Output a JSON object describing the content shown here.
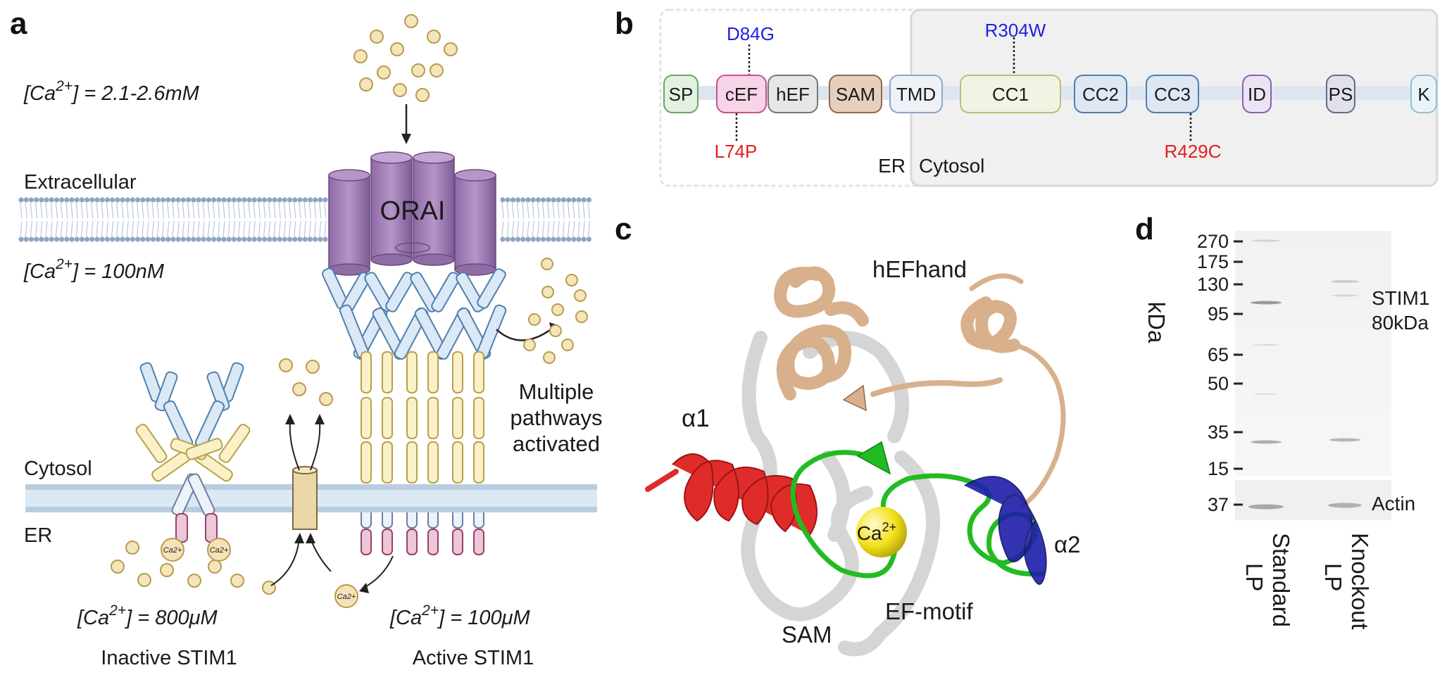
{
  "panel_a": {
    "letter": "a",
    "ca_extracellular_prefix": "[Ca",
    "ca_sup": "2+",
    "ca_extracellular_value": "] = 2.1-2.6mM",
    "extracellular_label": "Extracellular",
    "orai_label": "ORAI",
    "ca_cytosol_value": "] = 100nM",
    "pathways_line1": "Multiple",
    "pathways_line2": "pathways",
    "pathways_line3": "activated",
    "cytosol_label": "Cytosol",
    "er_label": "ER",
    "ca_er_inactive_value": "] = 800μM",
    "ca_er_active_value": "] = 100μM",
    "inactive_label": "Inactive STIM1",
    "active_label": "Active STIM1",
    "ca_ion_label": "Ca2+"
  },
  "panel_b": {
    "letter": "b",
    "domains": [
      "SP",
      "cEF",
      "hEF",
      "SAM",
      "TMD",
      "CC1",
      "CC2",
      "CC3",
      "ID",
      "PS",
      "K"
    ],
    "mutations_top": [
      "D84G",
      "R304W"
    ],
    "mutations_bottom": [
      "L74P",
      "R429C"
    ],
    "er_label": "ER",
    "cytosol_label": "Cytosol",
    "colors": {
      "top_mutation": "#1f1fe0",
      "bottom_mutation": "#e01f1f"
    }
  },
  "panel_c": {
    "letter": "c",
    "hefhand_label": "hEFhand",
    "alpha1_label": "α1",
    "alpha2_label": "α2",
    "ca_label": "Ca",
    "ca_sup": "2+",
    "efmotif_label": "EF-motif",
    "sam_label": "SAM",
    "colors": {
      "hef": "#d9b08c",
      "alpha1": "#e02b2b",
      "alpha2": "#1e1eaa",
      "ef": "#22bb22",
      "sam": "#c8c8c8",
      "ca": "#f2e41a"
    }
  },
  "panel_d": {
    "letter": "d",
    "axis_label": "kDa",
    "ticks": [
      "270",
      "175",
      "130",
      "95",
      "65",
      "50",
      "35",
      "15"
    ],
    "actin_tick": "37",
    "stim1_label": "STIM1",
    "stim1_size": "80kDa",
    "actin_label": "Actin",
    "lane1_line1": "Standard",
    "lane1_line2": "LP",
    "lane2_line1": "Knockout",
    "lane2_line2": "LP"
  }
}
